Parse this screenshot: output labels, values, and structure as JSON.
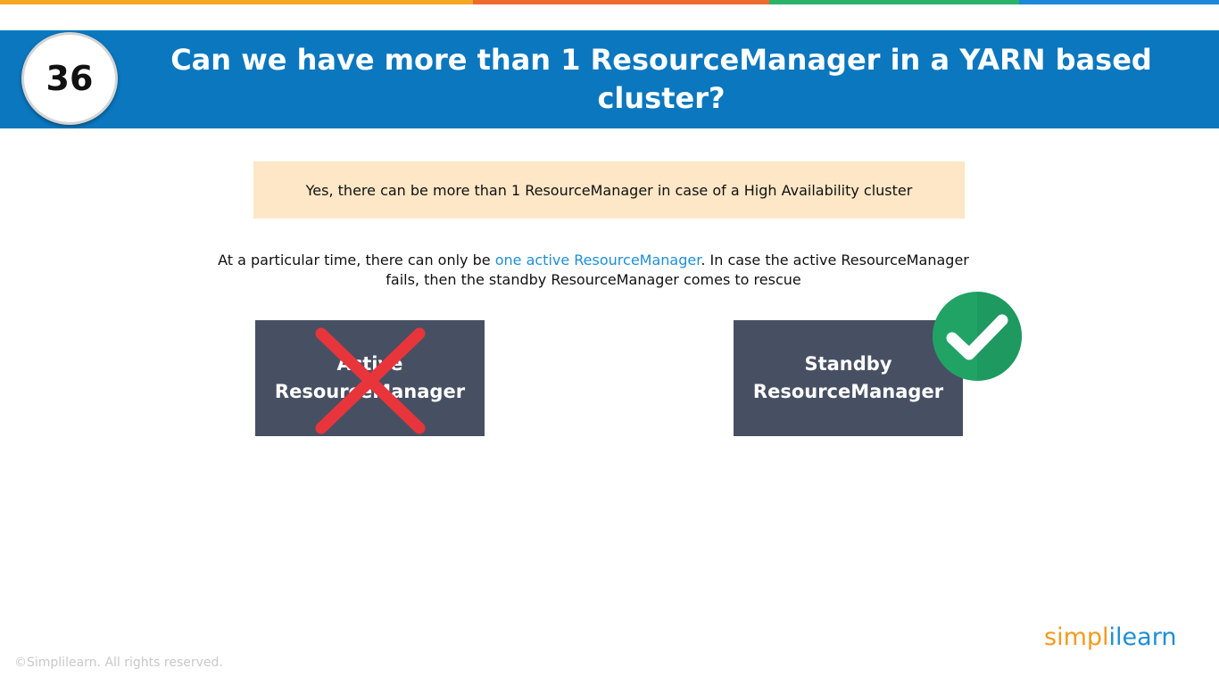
{
  "slide": {
    "number": "36",
    "title": "Can we have more than 1 ResourceManager in a YARN based cluster?"
  },
  "answer": "Yes, there can be more than 1 ResourceManager in case of a High Availability cluster",
  "explanation": {
    "before": "At a particular time, there can only be ",
    "highlight": "one active ResourceManager",
    "after": ". In case the active ResourceManager fails, then the standby ResourceManager comes to rescue"
  },
  "boxes": {
    "active_label": "Active\nResourceManager",
    "standby_label": "Standby\nResourceManager"
  },
  "icons": {
    "active": "cross-icon",
    "standby": "check-icon"
  },
  "footer": {
    "copyright": "©Simplilearn. All rights reserved.",
    "logo_left": "simpl",
    "logo_bar": "i",
    "logo_right": "learn"
  },
  "colors": {
    "header": "#0a77bf",
    "answer_bg": "#fde7c6",
    "box_bg": "#475063",
    "highlight": "#1e8fd5",
    "cross": "#e8353b",
    "check": "#21a366"
  }
}
